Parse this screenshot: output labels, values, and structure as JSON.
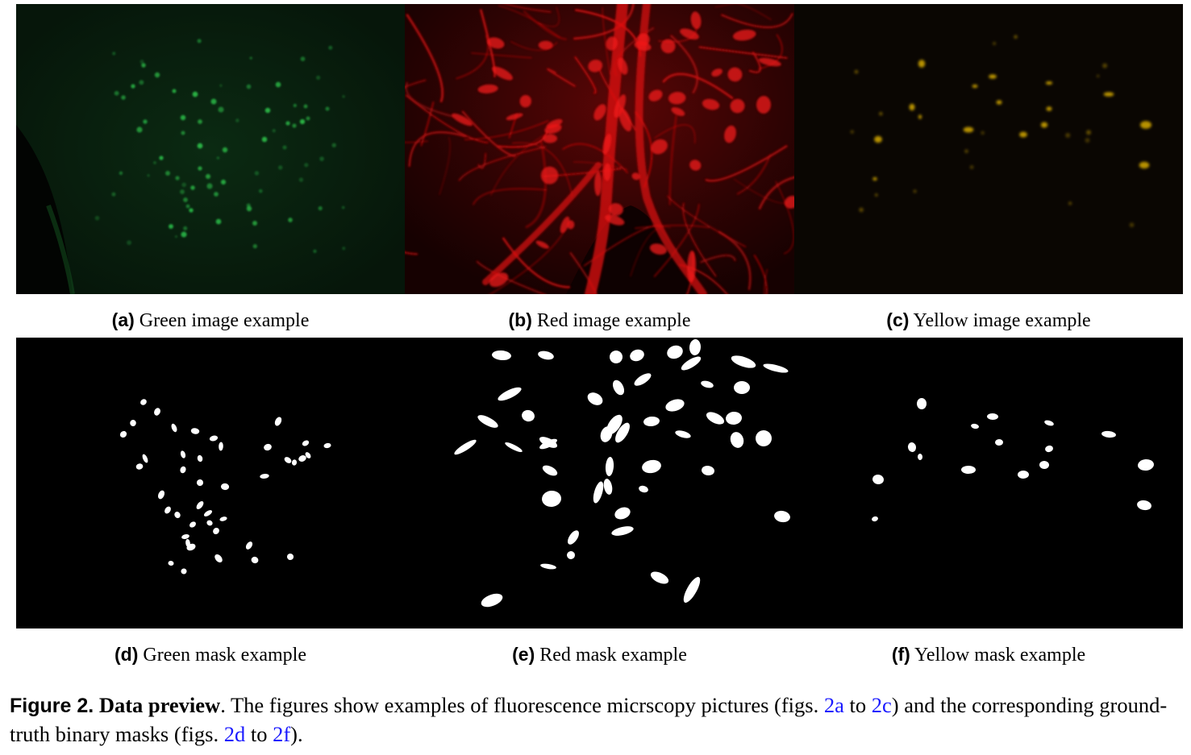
{
  "panels": [
    {
      "id": "a",
      "label": "(a)",
      "caption": "Green image example",
      "kind": "green-image"
    },
    {
      "id": "b",
      "label": "(b)",
      "caption": "Red image example",
      "kind": "red-image"
    },
    {
      "id": "c",
      "label": "(c)",
      "caption": "Yellow image example",
      "kind": "yellow-image"
    },
    {
      "id": "d",
      "label": "(d)",
      "caption": "Green mask example",
      "kind": "green-mask"
    },
    {
      "id": "e",
      "label": "(e)",
      "caption": "Red mask example",
      "kind": "red-mask"
    },
    {
      "id": "f",
      "label": "(f)",
      "caption": "Yellow mask example",
      "kind": "yellow-mask"
    }
  ],
  "figure_caption": {
    "label": "Figure 2.",
    "title": "Data preview",
    "text_1": ". The figures show examples of fluorescence micrscopy pictures (figs. ",
    "ref_1": "2a",
    "text_2": " to ",
    "ref_2": "2c",
    "text_3": ") and the corresponding ground-truth binary masks (figs. ",
    "ref_3": "2d",
    "text_4": " to ",
    "ref_4": "2f",
    "text_5": ")."
  },
  "colors": {
    "green_signal": "#1fa53a",
    "red_signal": "#e01010",
    "yellow_signal": "#e2b400",
    "mask_fg": "#ffffff",
    "mask_bg": "#000000",
    "link": "#1a1aff"
  }
}
